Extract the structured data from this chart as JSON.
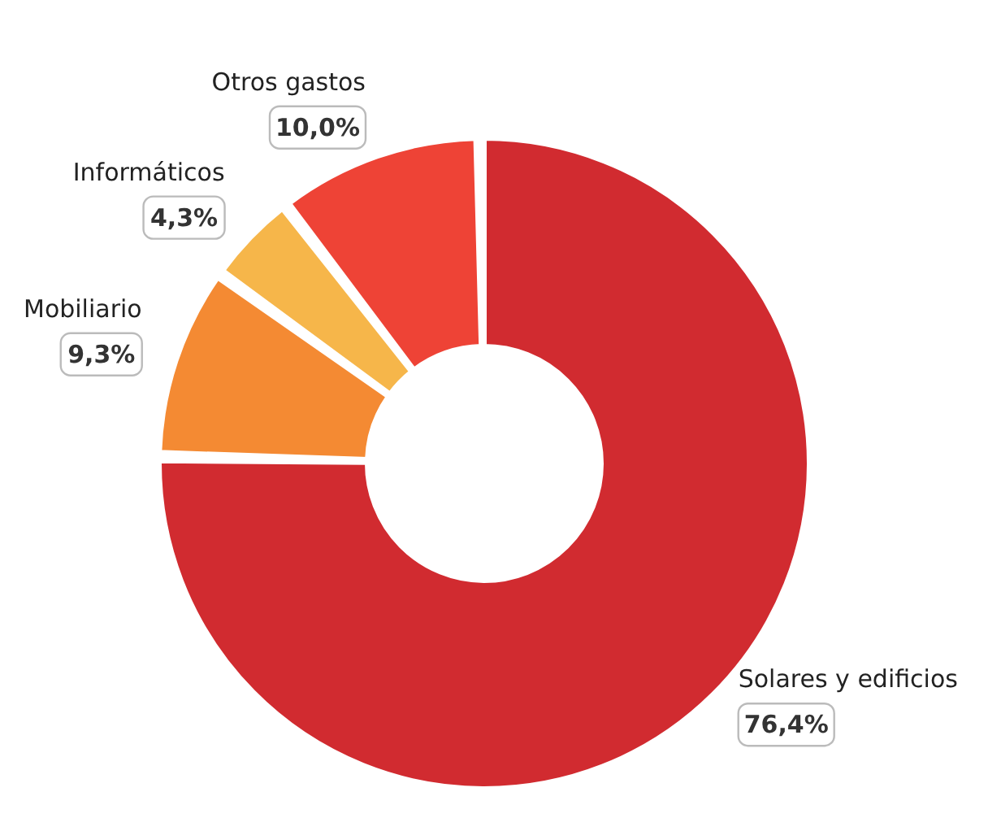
{
  "chart_data": {
    "type": "donut",
    "categories": [
      "Solares y edificios",
      "Mobiliario",
      "Informáticos",
      "Otros gastos"
    ],
    "values": [
      76.4,
      9.3,
      4.3,
      10.0
    ],
    "value_labels": [
      "76,4%",
      "9,3%",
      "4,3%",
      "10,0%"
    ],
    "colors": [
      "#d12b30",
      "#f48a33",
      "#f6b64a",
      "#ee4336"
    ]
  }
}
